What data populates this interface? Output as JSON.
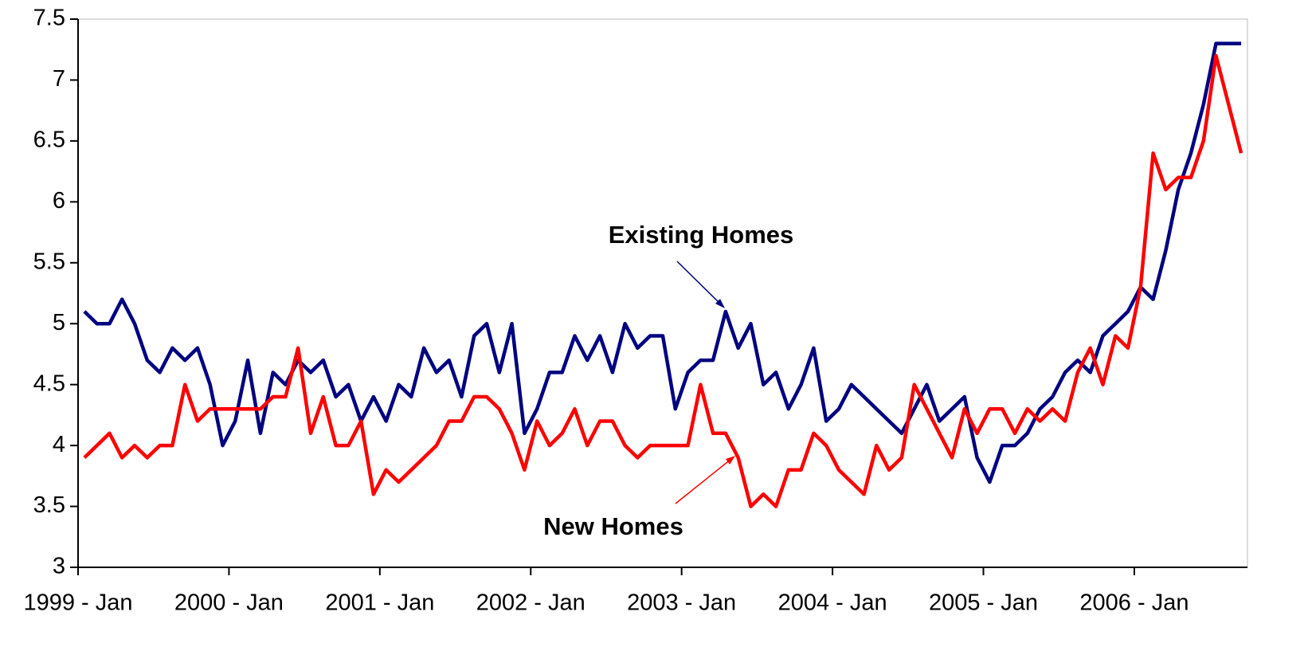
{
  "chart_data": {
    "type": "line",
    "categories": [
      "1999 - Jan",
      null,
      null,
      null,
      null,
      null,
      null,
      null,
      null,
      null,
      null,
      null,
      "2000 - Jan",
      null,
      null,
      null,
      null,
      null,
      null,
      null,
      null,
      null,
      null,
      null,
      "2001 - Jan",
      null,
      null,
      null,
      null,
      null,
      null,
      null,
      null,
      null,
      null,
      null,
      "2002 - Jan",
      null,
      null,
      null,
      null,
      null,
      null,
      null,
      null,
      null,
      null,
      null,
      "2003 - Jan",
      null,
      null,
      null,
      null,
      null,
      null,
      null,
      null,
      null,
      null,
      null,
      "2004 - Jan",
      null,
      null,
      null,
      null,
      null,
      null,
      null,
      null,
      null,
      null,
      null,
      "2005 - Jan",
      null,
      null,
      null,
      null,
      null,
      null,
      null,
      null,
      null,
      null,
      null,
      "2006 - Jan",
      null,
      null,
      null,
      null,
      null,
      null,
      null,
      null
    ],
    "series": [
      {
        "name": "Existing Homes",
        "color": "#000080",
        "values": [
          5.1,
          5.0,
          5.0,
          5.2,
          5.0,
          4.7,
          4.6,
          4.8,
          4.7,
          4.8,
          4.5,
          4.0,
          4.2,
          4.7,
          4.1,
          4.6,
          4.5,
          4.7,
          4.6,
          4.7,
          4.4,
          4.5,
          4.2,
          4.4,
          4.2,
          4.5,
          4.4,
          4.8,
          4.6,
          4.7,
          4.4,
          4.9,
          5.0,
          4.6,
          5.0,
          4.1,
          4.3,
          4.6,
          4.6,
          4.9,
          4.7,
          4.9,
          4.6,
          5.0,
          4.8,
          4.9,
          4.9,
          4.3,
          4.6,
          4.7,
          4.7,
          5.1,
          4.8,
          5.0,
          4.5,
          4.6,
          4.3,
          4.5,
          4.8,
          4.2,
          4.3,
          4.5,
          4.4,
          4.3,
          4.2,
          4.1,
          4.3,
          4.5,
          4.2,
          4.3,
          4.4,
          3.9,
          3.7,
          4.0,
          4.0,
          4.1,
          4.3,
          4.4,
          4.6,
          4.7,
          4.6,
          4.9,
          5.0,
          5.1,
          5.3,
          5.2,
          5.6,
          6.1,
          6.4,
          6.8,
          7.3,
          7.3,
          7.3
        ]
      },
      {
        "name": "New Homes",
        "color": "#ff0000",
        "values": [
          3.9,
          4.0,
          4.1,
          3.9,
          4.0,
          3.9,
          4.0,
          4.0,
          4.5,
          4.2,
          4.3,
          4.3,
          4.3,
          4.3,
          4.3,
          4.4,
          4.4,
          4.8,
          4.1,
          4.4,
          4.0,
          4.0,
          4.2,
          3.6,
          3.8,
          3.7,
          3.8,
          3.9,
          4.0,
          4.2,
          4.2,
          4.4,
          4.4,
          4.3,
          4.1,
          3.8,
          4.2,
          4.0,
          4.1,
          4.3,
          4.0,
          4.2,
          4.2,
          4.0,
          3.9,
          4.0,
          4.0,
          4.0,
          4.0,
          4.5,
          4.1,
          4.1,
          3.9,
          3.5,
          3.6,
          3.5,
          3.8,
          3.8,
          4.1,
          4.0,
          3.8,
          3.7,
          3.6,
          4.0,
          3.8,
          3.9,
          4.5,
          4.3,
          4.1,
          3.9,
          4.3,
          4.1,
          4.3,
          4.3,
          4.1,
          4.3,
          4.2,
          4.3,
          4.2,
          4.6,
          4.8,
          4.5,
          4.9,
          4.8,
          5.3,
          6.4,
          6.1,
          6.2,
          6.2,
          6.5,
          7.2,
          6.8,
          6.4
        ]
      }
    ],
    "ylim": [
      3,
      7.5
    ],
    "yticks": [
      3,
      3.5,
      4,
      4.5,
      5,
      5.5,
      6,
      6.5,
      7,
      7.5
    ],
    "annotations": [
      {
        "text": "Existing Homes",
        "color": "#000080"
      },
      {
        "text": "New Homes",
        "color": "#ff0000"
      }
    ]
  }
}
